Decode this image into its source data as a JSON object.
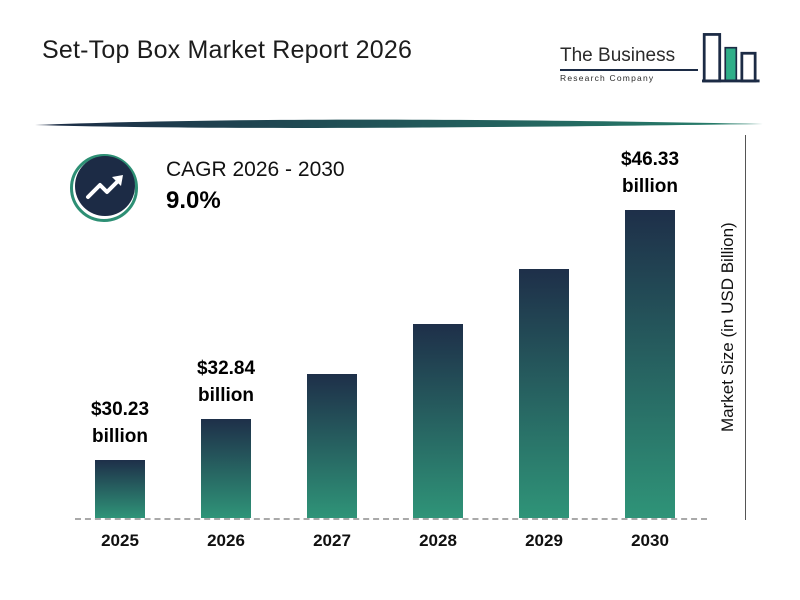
{
  "header": {
    "title": "Set-Top Box Market Report 2026",
    "logo": {
      "line1": "The Business",
      "line2": "Research Company"
    }
  },
  "cagr": {
    "label": "CAGR 2026 - 2030",
    "value": "9.0%"
  },
  "chart_data": {
    "type": "bar",
    "title": "Set-Top Box Market Report 2026",
    "categories": [
      "2025",
      "2026",
      "2027",
      "2028",
      "2029",
      "2030"
    ],
    "values": [
      30.23,
      32.84,
      35.8,
      39.02,
      42.53,
      46.33
    ],
    "values_estimated_indices": [
      2,
      3,
      4
    ],
    "value_labels": [
      "$30.23 billion",
      "$32.84 billion",
      null,
      null,
      null,
      "$46.33 billion"
    ],
    "xlabel": "",
    "ylabel": "Market Size (in USD Billion)",
    "grid": false,
    "legend": false,
    "baseline_style": "dashed"
  },
  "colors": {
    "bar_top": "#1e2f49",
    "bar_bottom": "#2f9478",
    "brand_navy": "#1c2b45",
    "brand_teal": "#2d8f74",
    "logo_green": "#2fae88"
  }
}
